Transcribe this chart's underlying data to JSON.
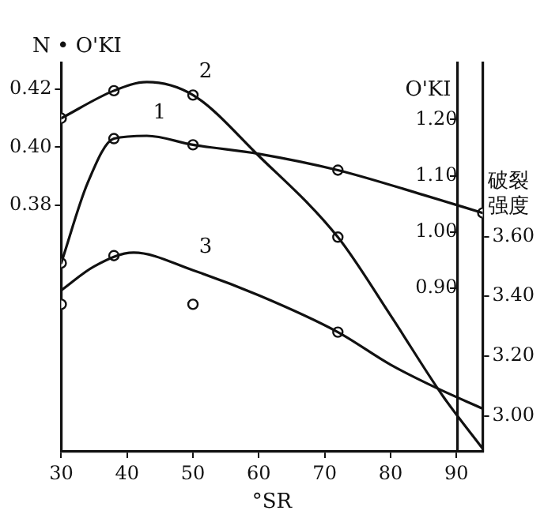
{
  "chart_data": {
    "type": "line",
    "ylabel": "N • O'KI",
    "y2label": "O'KI",
    "y3label": "破裂强度",
    "xlabel": "°SR",
    "xlim": [
      30,
      94
    ],
    "xticks": [
      30,
      40,
      50,
      60,
      70,
      80,
      90
    ],
    "ylim": [
      0.295,
      0.429
    ],
    "yticks": [
      {
        "value": 0.38,
        "label": "0.38"
      },
      {
        "value": 0.4,
        "label": "0.40"
      },
      {
        "value": 0.42,
        "label": "0.42"
      }
    ],
    "y2lim": [
      0.61,
      1.3
    ],
    "y2ticks": [
      {
        "value": 0.9,
        "label": "0.90"
      },
      {
        "value": 1.0,
        "label": "1.00"
      },
      {
        "value": 1.1,
        "label": "1.10"
      },
      {
        "value": 1.2,
        "label": "1.20"
      }
    ],
    "y3lim": [
      2.88,
      4.18
    ],
    "y3ticks": [
      {
        "value": 3.0,
        "label": "3.00"
      },
      {
        "value": 3.2,
        "label": "3.20"
      },
      {
        "value": 3.4,
        "label": "3.40"
      },
      {
        "value": 3.6,
        "label": "3.60"
      }
    ],
    "grid": false,
    "legend": false,
    "series": [
      {
        "name": "1",
        "color": "#111111",
        "axis": "y2",
        "marker": "none",
        "x": [
          30,
          34,
          38,
          43,
          50,
          60,
          72,
          85,
          94
        ],
        "values": [
          0.945,
          1.087,
          1.166,
          1.171,
          1.155,
          1.139,
          1.11,
          1.066,
          1.034
        ]
      },
      {
        "name": "2",
        "color": "#111111",
        "axis": "y",
        "marker": "none",
        "x": [
          30,
          38,
          43,
          50,
          60,
          72,
          80,
          88,
          94
        ],
        "values": [
          0.41,
          0.4195,
          0.4225,
          0.418,
          0.397,
          0.369,
          0.342,
          0.314,
          0.296
        ]
      },
      {
        "name": "3",
        "color": "#111111",
        "axis": "y3",
        "marker": "none",
        "x": [
          30,
          35,
          41,
          50,
          60,
          72,
          80,
          87,
          94
        ],
        "values": [
          3.42,
          3.5,
          3.546,
          3.487,
          3.403,
          3.28,
          3.171,
          3.093,
          3.024
        ]
      },
      {
        "type": "scatter",
        "color": "#111111",
        "axis": "y2",
        "marker": "circle",
        "x": [
          30,
          38,
          50,
          72,
          94
        ],
        "values": [
          0.945,
          1.166,
          1.155,
          1.11,
          1.034
        ]
      },
      {
        "type": "scatter",
        "color": "#111111",
        "axis": "y",
        "marker": "circle",
        "x": [
          30,
          38,
          50,
          72
        ],
        "values": [
          0.41,
          0.4195,
          0.418,
          0.369
        ]
      },
      {
        "type": "scatter",
        "color": "#111111",
        "axis": "y3",
        "marker": "circle",
        "x": [
          30,
          38,
          50,
          72
        ],
        "values": [
          3.373,
          3.536,
          3.373,
          3.28
        ]
      }
    ]
  }
}
